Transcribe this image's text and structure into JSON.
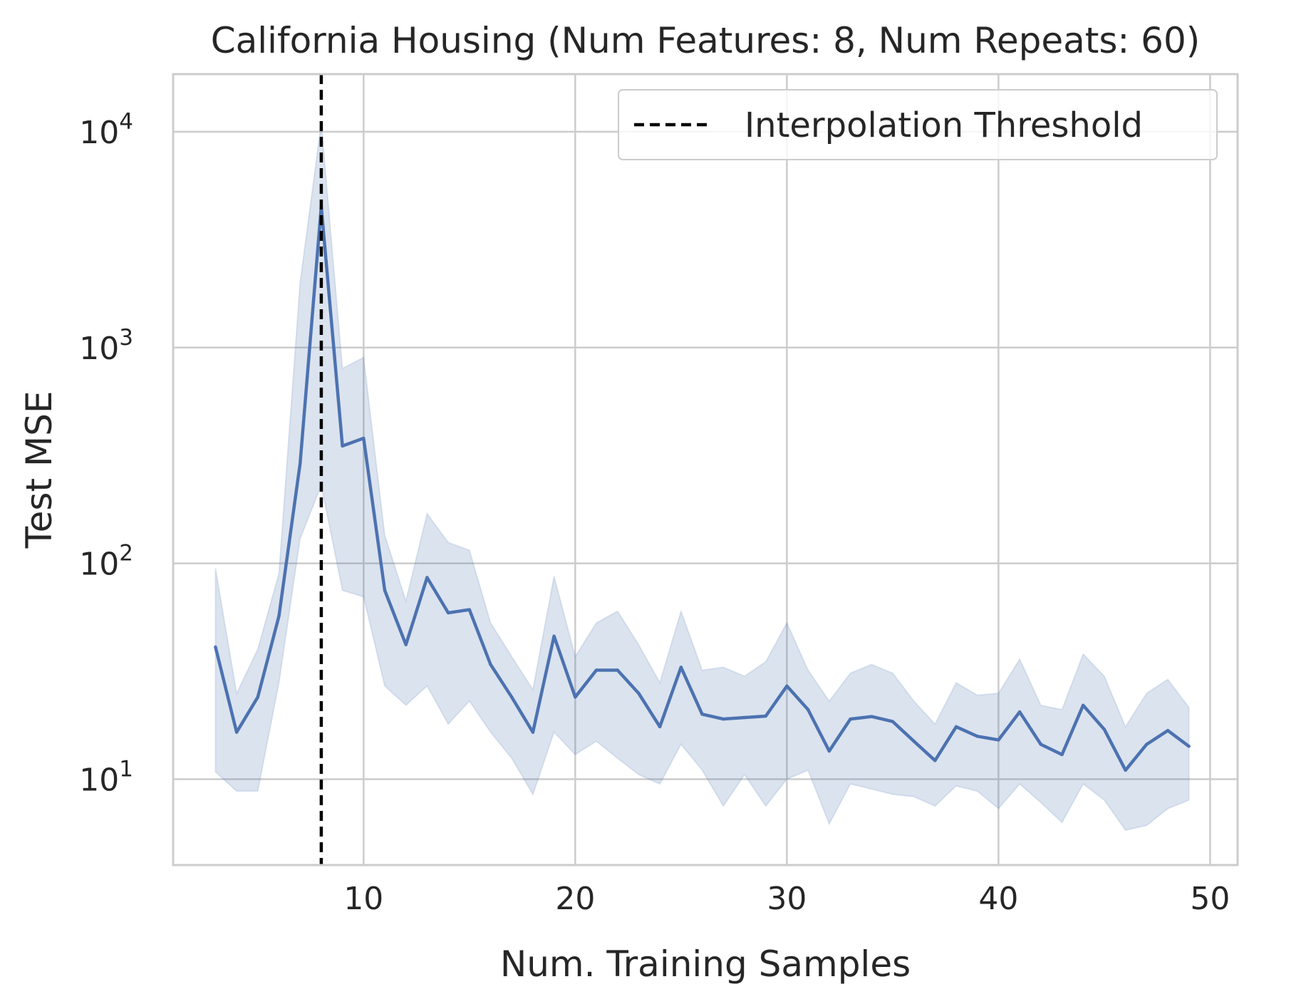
{
  "chart_data": {
    "type": "line",
    "title": "California Housing (Num Features: 8, Num Repeats: 60)",
    "xlabel": "Num. Training Samples",
    "ylabel": "Test MSE",
    "xlim": [
      1,
      51.3
    ],
    "ylim": [
      4,
      18500
    ],
    "yscale": "log",
    "x_ticks": [
      10,
      20,
      30,
      40,
      50
    ],
    "y_ticks": [
      {
        "value": 10,
        "base": "10",
        "exp": "1"
      },
      {
        "value": 100,
        "base": "10",
        "exp": "2"
      },
      {
        "value": 1000,
        "base": "10",
        "exp": "3"
      },
      {
        "value": 10000,
        "base": "10",
        "exp": "4"
      }
    ],
    "grid": true,
    "legend": {
      "position": "top-right",
      "entries": [
        "Interpolation Threshold"
      ]
    },
    "threshold": {
      "x": 8,
      "label": "Interpolation Threshold",
      "style": "dashed",
      "color": "#000000"
    },
    "line_color": "#4c72b0",
    "band_color": "#4c72b0",
    "series": [
      {
        "x": [
          3,
          4,
          5,
          6,
          7,
          8,
          9,
          10,
          11,
          12,
          13,
          14,
          15,
          16,
          17,
          18,
          19,
          20,
          21,
          22,
          23,
          24,
          25,
          26,
          27,
          28,
          29,
          30,
          31,
          32,
          33,
          34,
          35,
          36,
          37,
          38,
          39,
          40,
          41,
          42,
          43,
          44,
          45,
          46,
          47,
          48,
          49
        ],
        "mean": [
          41,
          16.5,
          24,
          57,
          290,
          4500,
          350,
          380,
          75,
          42,
          86,
          59,
          61,
          34,
          24,
          16.5,
          46,
          24,
          32,
          32,
          25,
          17.5,
          33,
          20,
          19,
          19.3,
          19.6,
          27,
          21,
          13.5,
          19,
          19.5,
          18.5,
          15,
          12.2,
          17.5,
          15.8,
          15.2,
          20.5,
          14.5,
          13,
          22,
          17,
          11,
          14.5,
          16.8,
          14.2
        ],
        "upper": [
          95,
          25,
          40,
          90,
          2000,
          11000,
          800,
          900,
          135,
          67,
          170,
          125,
          115,
          53,
          37,
          26,
          87,
          37,
          53,
          60,
          42,
          28,
          60,
          32,
          33,
          30,
          35,
          53,
          32,
          23,
          31,
          34,
          31,
          23,
          18,
          28,
          24.5,
          25,
          36,
          22,
          21,
          38,
          30,
          17.5,
          25,
          29,
          21.5
        ],
        "lower": [
          10.8,
          8.8,
          8.8,
          28,
          130,
          230,
          75,
          70,
          27,
          22,
          27,
          18,
          23,
          16.5,
          12.5,
          8.5,
          16.5,
          13,
          15,
          12.5,
          10.5,
          9.5,
          14.5,
          11,
          7.5,
          10.5,
          7.5,
          10,
          11,
          6.2,
          9.5,
          9,
          8.5,
          8.3,
          7.5,
          9.3,
          8.8,
          7.3,
          9.5,
          7.8,
          6.3,
          9.5,
          8,
          5.8,
          6.1,
          7.3,
          8
        ]
      }
    ]
  }
}
